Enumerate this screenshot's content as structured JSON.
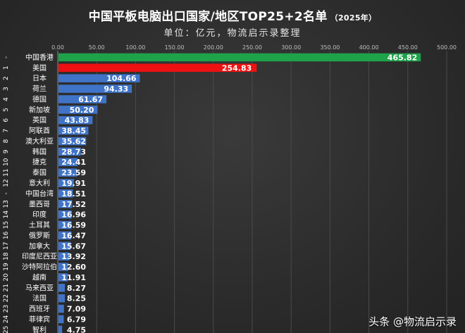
{
  "header": {
    "title": "中国平板电脑出口国家/地区TOP25+2名单",
    "title_year": "（2025年）",
    "subtitle": "单位：亿元，物流启示录整理"
  },
  "watermark": "头条 @物流启示录",
  "colors": {
    "first": "#1ea24a",
    "second": "#ee1111",
    "rest": "#3f74c8"
  },
  "chart_data": {
    "type": "bar",
    "orientation": "horizontal",
    "title": "中国平板电脑出口国家/地区TOP25+2名单",
    "xlim": [
      0,
      500
    ],
    "x_ticks": [
      "0.00",
      "50.00",
      "100.00",
      "150.00",
      "200.00",
      "250.00",
      "300.00",
      "350.00",
      "400.00",
      "450.00",
      "500.00"
    ],
    "x_tick_values": [
      0,
      50,
      100,
      150,
      200,
      250,
      300,
      350,
      400,
      450,
      500
    ],
    "grid": true,
    "categories": [
      "中国香港",
      "美国",
      "日本",
      "荷兰",
      "德国",
      "新加坡",
      "英国",
      "阿联酋",
      "澳大利亚",
      "韩国",
      "捷克",
      "泰国",
      "意大利",
      "中国台湾",
      "墨西哥",
      "印度",
      "土耳其",
      "俄罗斯",
      "加拿大",
      "印度尼西亚",
      "沙特阿拉伯",
      "越南",
      "马来西亚",
      "法国",
      "西班牙",
      "菲律宾",
      "智利"
    ],
    "ranks": [
      "-",
      "1",
      "2",
      "3",
      "4",
      "5",
      "6",
      "7",
      "8",
      "9",
      "10",
      "11",
      "12",
      "-",
      "13",
      "14",
      "15",
      "16",
      "17",
      "18",
      "19",
      "20",
      "21",
      "22",
      "23",
      "24",
      "25"
    ],
    "values": [
      465.82,
      254.83,
      104.66,
      94.33,
      61.67,
      50.2,
      43.83,
      38.45,
      35.62,
      28.73,
      24.41,
      23.59,
      19.91,
      18.51,
      17.52,
      16.96,
      16.59,
      16.47,
      15.67,
      13.92,
      12.6,
      11.91,
      8.27,
      8.25,
      7.09,
      6.79,
      4.75
    ],
    "value_labels": [
      "465.82",
      "254.83",
      "104.66",
      "94.33",
      "61.67",
      "50.20",
      "43.83",
      "38.45",
      "35.62",
      "28.73",
      "24.41",
      "23.59",
      "19.91",
      "18.51",
      "17.52",
      "16.96",
      "16.59",
      "16.47",
      "15.67",
      "13.92",
      "12.60",
      "11.91",
      "8.27",
      "8.25",
      "7.09",
      "6.79",
      "4.75"
    ]
  }
}
